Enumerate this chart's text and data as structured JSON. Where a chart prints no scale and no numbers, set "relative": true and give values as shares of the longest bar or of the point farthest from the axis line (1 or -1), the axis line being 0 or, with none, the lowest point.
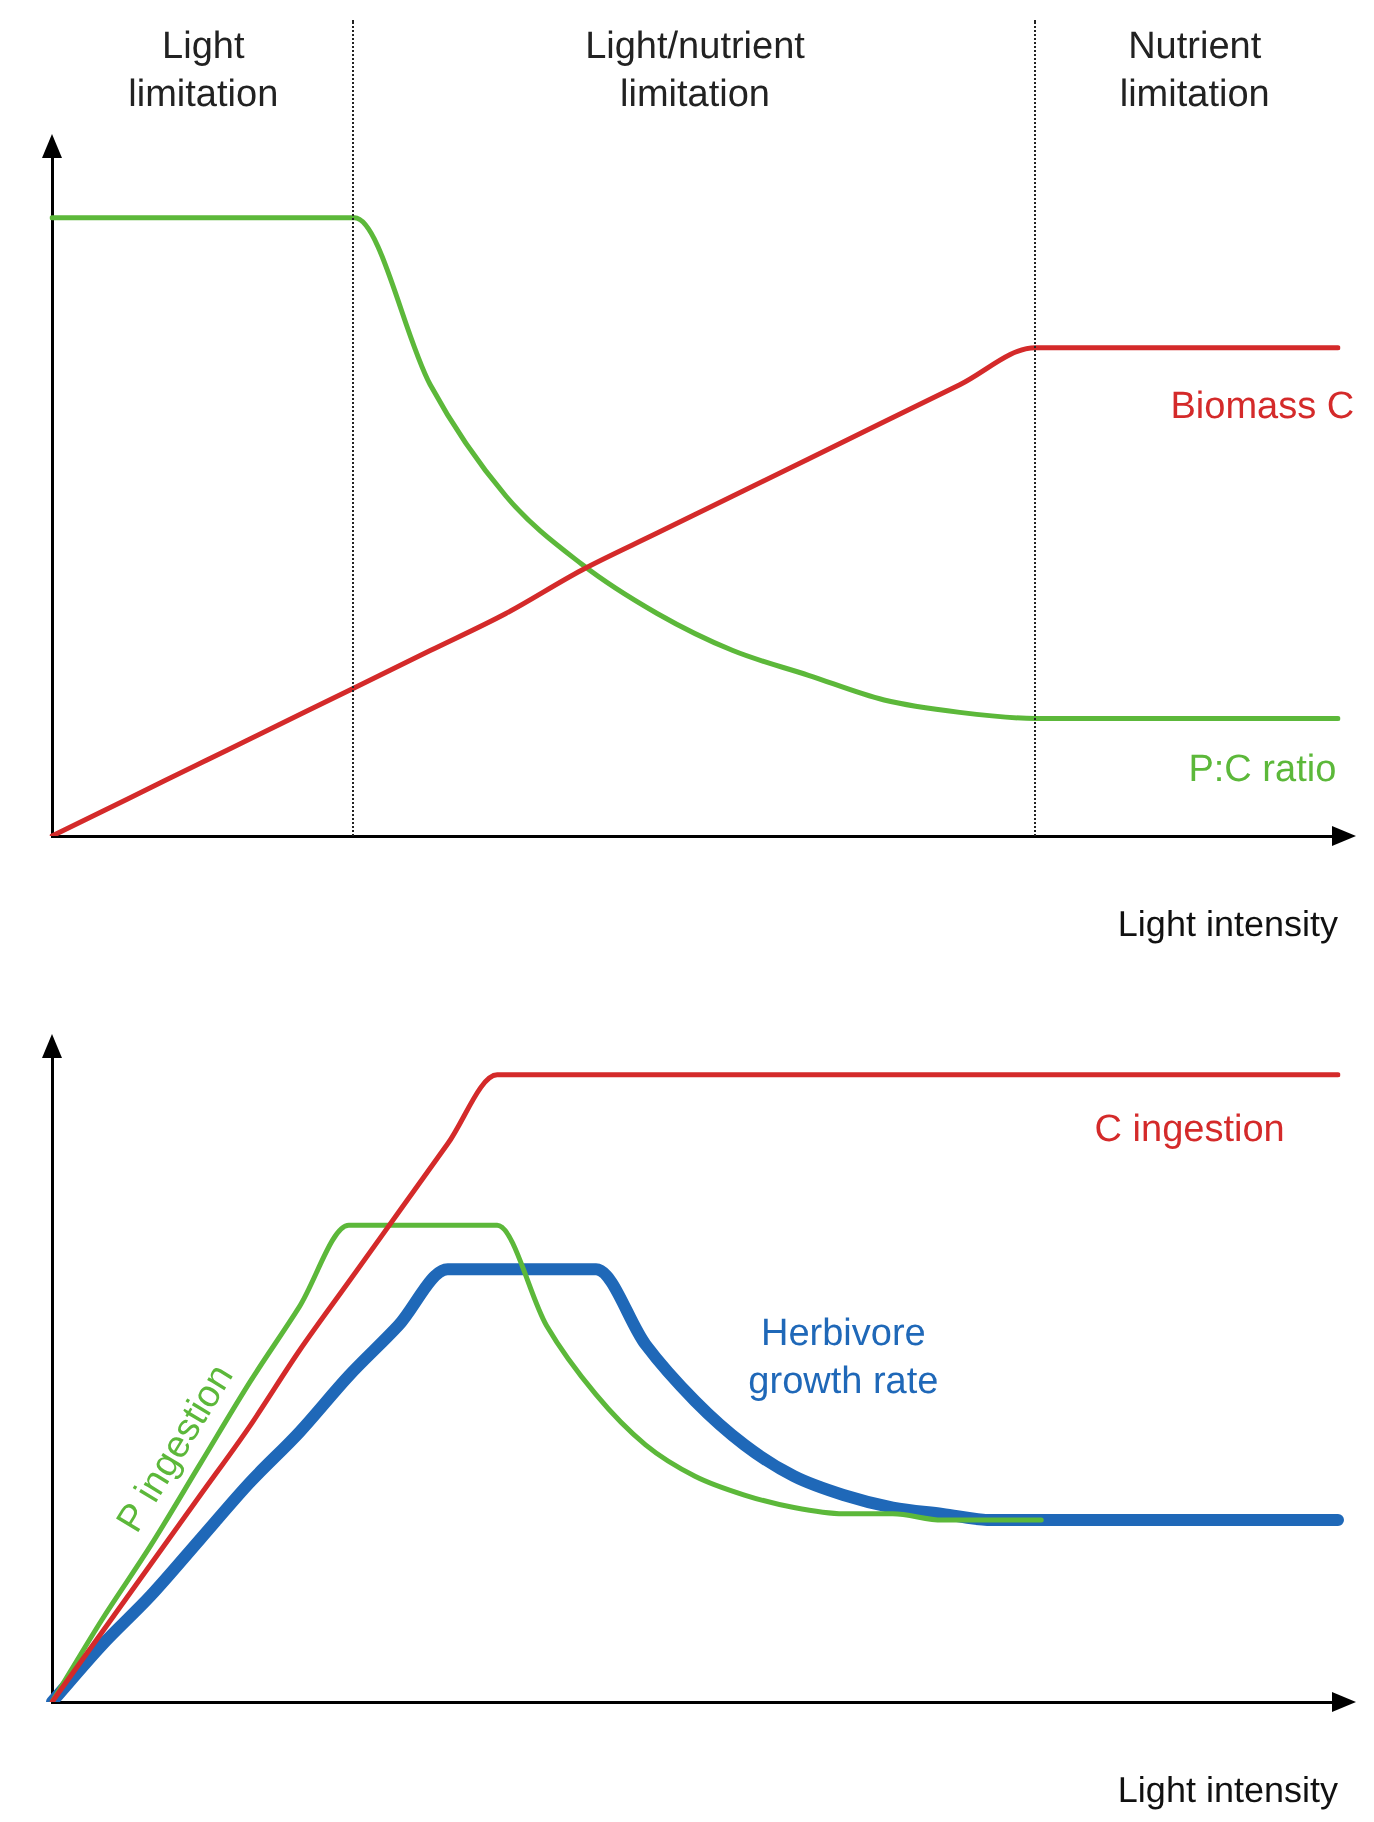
{
  "chart_data": [
    {
      "type": "line",
      "xlabel": "Light intensity",
      "categories": [
        null,
        null,
        null,
        null,
        null,
        null,
        null,
        null,
        null,
        null,
        null,
        null,
        null,
        null,
        null,
        null,
        null,
        null
      ],
      "relative": true,
      "series": [
        {
          "name": "Biomass C",
          "color": "#d42a2a",
          "values": [
            0,
            0.06,
            0.12,
            0.18,
            0.24,
            0.3,
            0.36,
            0.43,
            0.49,
            0.55,
            0.61,
            0.67,
            0.73,
            0.79,
            0.79,
            0.79,
            0.79,
            0.79
          ]
        },
        {
          "name": "P:C ratio",
          "color": "#5cb83a",
          "values": [
            1,
            1,
            1,
            1,
            1,
            0.73,
            0.55,
            0.44,
            0.36,
            0.3,
            0.26,
            0.22,
            0.2,
            0.19,
            0.19,
            0.19,
            0.19,
            0.19
          ]
        }
      ],
      "annotations": [
        "Light limitation",
        "Light/nutrient limitation",
        "Nutrient limitation"
      ],
      "grid": false,
      "legend": false,
      "marker": "none"
    },
    {
      "type": "line",
      "xlabel": "Light intensity",
      "categories": [
        null,
        null,
        null,
        null,
        null,
        null,
        null,
        null,
        null,
        null,
        null,
        null,
        null,
        null,
        null,
        null,
        null,
        null,
        null,
        null,
        null,
        null,
        null,
        null,
        null,
        null,
        null
      ],
      "relative": true,
      "series": [
        {
          "name": "C ingestion",
          "color": "#d42a2a",
          "values": [
            0,
            0.11,
            0.22,
            0.33,
            0.44,
            0.56,
            0.67,
            0.78,
            0.89,
            1,
            1,
            1,
            1,
            1,
            1,
            1,
            1,
            1,
            1,
            1,
            1,
            1,
            1,
            1,
            1,
            1,
            1
          ]
        },
        {
          "name": "P ingestion",
          "color": "#5cb83a",
          "values": [
            0,
            0.13,
            0.25,
            0.38,
            0.51,
            0.63,
            0.76,
            0.76,
            0.76,
            0.76,
            0.6,
            0.49,
            0.41,
            0.36,
            0.33,
            0.31,
            0.3,
            0.3,
            0.29,
            0.29,
            0.29,
            null,
            null,
            null,
            null,
            null,
            null
          ]
        },
        {
          "name": "Herbivore growth rate",
          "color": "#1f68b8",
          "values": [
            0,
            0.09,
            0.17,
            0.26,
            0.35,
            0.43,
            0.52,
            0.6,
            0.69,
            0.69,
            0.69,
            0.69,
            0.57,
            0.48,
            0.41,
            0.36,
            0.33,
            0.31,
            0.3,
            0.29,
            0.29,
            0.29,
            0.29,
            0.29,
            0.29,
            0.29,
            0.29
          ]
        }
      ],
      "grid": false,
      "legend": false,
      "marker": "none"
    }
  ]
}
